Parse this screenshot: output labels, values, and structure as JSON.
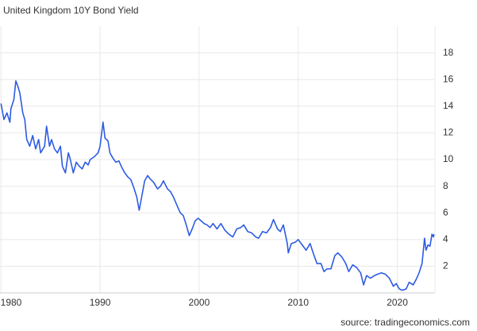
{
  "chart_data": {
    "type": "line",
    "title": "United Kingdom 10Y Bond Yield",
    "source": "source: tradingeconomics.com",
    "color": "#2d5be3",
    "grid": true,
    "xlim": [
      1979.9,
      2023.8
    ],
    "xticks": [
      1980,
      1990,
      2000,
      2010,
      2020
    ],
    "ylim": [
      0,
      20
    ],
    "yticks": [
      2,
      4,
      6,
      8,
      10,
      12,
      14,
      16,
      18
    ],
    "x": [
      1980.0,
      1980.3,
      1980.6,
      1980.9,
      1981.0,
      1981.3,
      1981.5,
      1981.7,
      1981.9,
      1982.2,
      1982.4,
      1982.6,
      1982.9,
      1983.2,
      1983.5,
      1983.8,
      1984.0,
      1984.4,
      1984.6,
      1984.9,
      1985.1,
      1985.4,
      1985.7,
      1986.0,
      1986.2,
      1986.5,
      1986.8,
      1987.0,
      1987.3,
      1987.6,
      1987.9,
      1988.2,
      1988.5,
      1988.8,
      1989.0,
      1989.4,
      1989.8,
      1990.0,
      1990.3,
      1990.5,
      1990.8,
      1991.0,
      1991.3,
      1991.6,
      1991.9,
      1992.2,
      1992.5,
      1992.8,
      1993.1,
      1993.4,
      1993.7,
      1993.95,
      1994.2,
      1994.5,
      1994.8,
      1995.0,
      1995.4,
      1995.8,
      1996.1,
      1996.4,
      1996.8,
      1997.1,
      1997.4,
      1997.8,
      1998.1,
      1998.4,
      1998.7,
      1999.0,
      1999.3,
      1999.6,
      1999.9,
      2000.2,
      2000.5,
      2000.8,
      2001.1,
      2001.4,
      2001.8,
      2002.2,
      2002.6,
      2003.0,
      2003.4,
      2003.8,
      2004.2,
      2004.5,
      2004.9,
      2005.3,
      2005.7,
      2006.0,
      2006.4,
      2006.8,
      2007.2,
      2007.5,
      2007.9,
      2008.2,
      2008.5,
      2008.9,
      2009.0,
      2009.3,
      2009.7,
      2010.0,
      2010.4,
      2010.8,
      2011.2,
      2011.6,
      2011.9,
      2012.3,
      2012.6,
      2012.9,
      2013.3,
      2013.7,
      2014.0,
      2014.4,
      2014.8,
      2015.1,
      2015.5,
      2015.9,
      2016.3,
      2016.6,
      2016.9,
      2017.3,
      2017.7,
      2018.0,
      2018.4,
      2018.8,
      2019.2,
      2019.6,
      2019.9,
      2020.2,
      2020.5,
      2020.9,
      2021.2,
      2021.6,
      2021.9,
      2022.2,
      2022.5,
      2022.75,
      2022.9,
      2023.1,
      2023.3,
      2023.5,
      2023.65,
      2023.7
    ],
    "values": [
      14.2,
      13.0,
      13.5,
      12.8,
      13.8,
      14.5,
      15.9,
      15.5,
      15.0,
      13.5,
      13.0,
      11.5,
      11.0,
      11.8,
      10.8,
      11.5,
      10.5,
      11.0,
      12.5,
      11.0,
      11.5,
      10.8,
      10.5,
      11.0,
      9.5,
      9.0,
      10.5,
      10.0,
      9.0,
      9.8,
      9.5,
      9.3,
      9.8,
      9.6,
      10.0,
      10.2,
      10.5,
      11.0,
      12.8,
      11.6,
      11.4,
      10.5,
      10.1,
      9.8,
      9.9,
      9.4,
      9.0,
      8.7,
      8.5,
      7.9,
      7.2,
      6.2,
      7.2,
      8.4,
      8.8,
      8.6,
      8.3,
      7.8,
      8.0,
      8.4,
      7.8,
      7.6,
      7.2,
      6.5,
      6.0,
      5.8,
      5.1,
      4.3,
      4.8,
      5.4,
      5.6,
      5.4,
      5.2,
      5.1,
      4.9,
      5.2,
      4.8,
      5.2,
      4.7,
      4.4,
      4.2,
      4.8,
      4.9,
      5.1,
      4.6,
      4.5,
      4.2,
      4.1,
      4.6,
      4.5,
      4.9,
      5.5,
      4.8,
      4.6,
      5.1,
      3.7,
      3.0,
      3.7,
      3.8,
      4.0,
      3.6,
      3.2,
      3.7,
      2.8,
      2.2,
      2.2,
      1.6,
      1.8,
      1.8,
      2.8,
      3.0,
      2.7,
      2.2,
      1.6,
      2.1,
      1.9,
      1.5,
      0.6,
      1.3,
      1.1,
      1.3,
      1.4,
      1.5,
      1.4,
      1.1,
      0.5,
      0.7,
      0.3,
      0.2,
      0.3,
      0.8,
      0.6,
      1.0,
      1.5,
      2.2,
      4.1,
      3.2,
      3.6,
      3.5,
      4.4,
      4.2,
      4.4
    ]
  }
}
